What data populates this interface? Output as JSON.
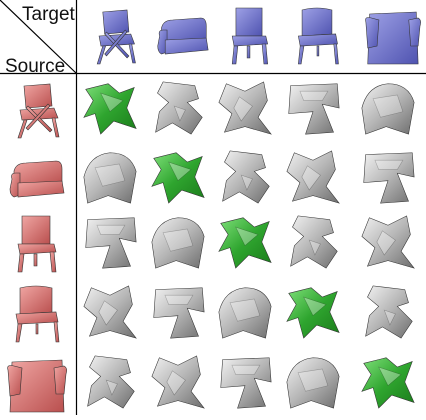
{
  "header": {
    "target_label": "Target",
    "source_label": "Source"
  },
  "colors": {
    "target": "#6f73cc",
    "source": "#d4706f",
    "match": "#3cb43c",
    "mismatch": "#9a9a9a",
    "grid_line": "#000000"
  },
  "shapes": [
    "folding-chair",
    "sofa",
    "high-back-chair",
    "side-chair",
    "armchair"
  ],
  "grid": {
    "rows": 5,
    "cols": 5,
    "highlight": "diagonal"
  }
}
